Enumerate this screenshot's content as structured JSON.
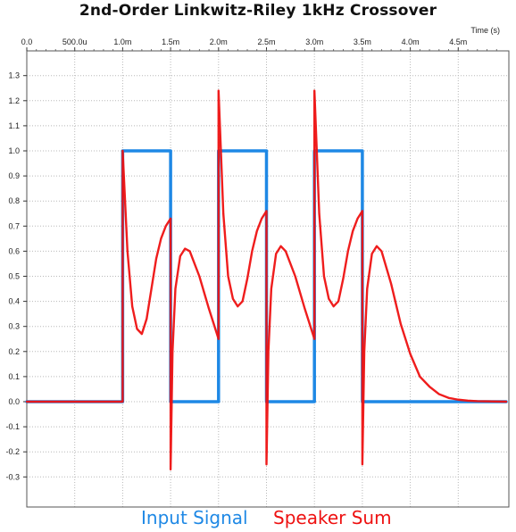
{
  "chart_data": {
    "type": "line",
    "title": "2nd-Order Linkwitz-Riley 1kHz Crossover",
    "xlabel": "Time  (s)",
    "ylabel": "",
    "xlim": [
      0,
      0.005
    ],
    "ylim": [
      -0.4,
      1.4
    ],
    "grid": true,
    "legend_position": "bottom",
    "x_ticks": [
      {
        "value": 0,
        "label": "0.0"
      },
      {
        "value": 0.0005,
        "label": "500.0u"
      },
      {
        "value": 0.001,
        "label": "1.0m"
      },
      {
        "value": 0.0015,
        "label": "1.5m"
      },
      {
        "value": 0.002,
        "label": "2.0m"
      },
      {
        "value": 0.0025,
        "label": "2.5m"
      },
      {
        "value": 0.003,
        "label": "3.0m"
      },
      {
        "value": 0.0035,
        "label": "3.5m"
      },
      {
        "value": 0.004,
        "label": "4.0m"
      },
      {
        "value": 0.0045,
        "label": "4.5m"
      }
    ],
    "y_ticks": [
      {
        "value": 1.3,
        "label": "1.3"
      },
      {
        "value": 1.2,
        "label": "1.2"
      },
      {
        "value": 1.1,
        "label": "1.1"
      },
      {
        "value": 1.0,
        "label": "1.0"
      },
      {
        "value": 0.9,
        "label": "0.9"
      },
      {
        "value": 0.8,
        "label": "0.8"
      },
      {
        "value": 0.7,
        "label": "0.7"
      },
      {
        "value": 0.6,
        "label": "0.6"
      },
      {
        "value": 0.5,
        "label": "0.5"
      },
      {
        "value": 0.4,
        "label": "0.4"
      },
      {
        "value": 0.3,
        "label": "0.3"
      },
      {
        "value": 0.2,
        "label": "0.2"
      },
      {
        "value": 0.1,
        "label": "0.1"
      },
      {
        "value": 0.0,
        "label": "0.0"
      },
      {
        "value": -0.1,
        "label": "-0.1"
      },
      {
        "value": -0.2,
        "label": "-0.2"
      },
      {
        "value": -0.3,
        "label": "-0.3"
      }
    ],
    "series": [
      {
        "name": "Input Signal",
        "color": "#1e88e5",
        "x": [
          0,
          0.001,
          0.001,
          0.0015,
          0.0015,
          0.002,
          0.002,
          0.0025,
          0.0025,
          0.003,
          0.003,
          0.0035,
          0.0035,
          0.005
        ],
        "y": [
          0,
          0,
          1,
          1,
          0,
          0,
          1,
          1,
          0,
          0,
          1,
          1,
          0,
          0
        ]
      },
      {
        "name": "Speaker Sum",
        "color": "#ee1111",
        "x": [
          0,
          0.001,
          0.001,
          0.00105,
          0.0011,
          0.00115,
          0.0012,
          0.00125,
          0.0013,
          0.00135,
          0.0014,
          0.00145,
          0.0015,
          0.0015,
          0.00152,
          0.00155,
          0.0016,
          0.00165,
          0.0017,
          0.0018,
          0.0019,
          0.002,
          0.002,
          0.00205,
          0.0021,
          0.00215,
          0.0022,
          0.00225,
          0.0023,
          0.00235,
          0.0024,
          0.00245,
          0.0025,
          0.0025,
          0.00252,
          0.00255,
          0.0026,
          0.00265,
          0.0027,
          0.0028,
          0.0029,
          0.003,
          0.003,
          0.00305,
          0.0031,
          0.00315,
          0.0032,
          0.00325,
          0.0033,
          0.00335,
          0.0034,
          0.00345,
          0.0035,
          0.0035,
          0.00352,
          0.00355,
          0.0036,
          0.00365,
          0.0037,
          0.0038,
          0.0039,
          0.004,
          0.0041,
          0.0042,
          0.0043,
          0.0044,
          0.0045,
          0.0046,
          0.0047,
          0.005
        ],
        "y": [
          0,
          0,
          1.0,
          0.6,
          0.38,
          0.29,
          0.27,
          0.33,
          0.45,
          0.57,
          0.65,
          0.7,
          0.73,
          -0.27,
          0.2,
          0.45,
          0.58,
          0.61,
          0.6,
          0.5,
          0.37,
          0.25,
          1.24,
          0.75,
          0.5,
          0.41,
          0.38,
          0.4,
          0.49,
          0.6,
          0.68,
          0.73,
          0.76,
          -0.25,
          0.2,
          0.45,
          0.59,
          0.62,
          0.6,
          0.5,
          0.37,
          0.25,
          1.24,
          0.75,
          0.5,
          0.41,
          0.38,
          0.4,
          0.49,
          0.6,
          0.68,
          0.73,
          0.76,
          -0.25,
          0.2,
          0.45,
          0.59,
          0.62,
          0.6,
          0.47,
          0.31,
          0.19,
          0.1,
          0.06,
          0.03,
          0.015,
          0.008,
          0.004,
          0.002,
          0.0
        ]
      }
    ]
  }
}
